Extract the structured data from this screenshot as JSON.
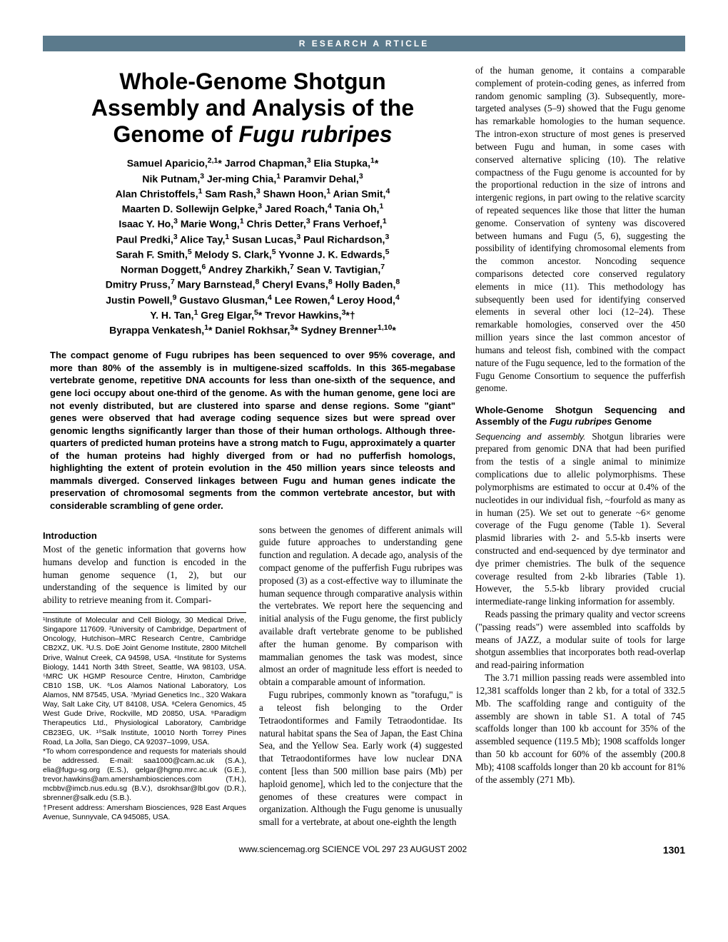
{
  "section_bar": "R ESEARCH  A RTICLE",
  "title_line1": "Whole-Genome Shotgun",
  "title_line2": "Assembly and Analysis of the",
  "title_line3": "Genome of Fugu rubripes",
  "authors_html": "Samuel Aparicio,<sup>2,1</sup>* Jarrod Chapman,<sup>3</sup> Elia Stupka,<sup>1</sup>*<br>Nik Putnam,<sup>3</sup> Jer-ming Chia,<sup>1</sup> Paramvir Dehal,<sup>3</sup><br>Alan Christoffels,<sup>1</sup> Sam Rash,<sup>3</sup> Shawn Hoon,<sup>1</sup> Arian Smit,<sup>4</sup><br>Maarten D. Sollewijn Gelpke,<sup>3</sup> Jared Roach,<sup>4</sup> Tania Oh,<sup>1</sup><br>Isaac Y. Ho,<sup>3</sup> Marie Wong,<sup>1</sup> Chris Detter,<sup>3</sup> Frans Verhoef,<sup>1</sup><br>Paul Predki,<sup>3</sup> Alice Tay,<sup>1</sup> Susan Lucas,<sup>3</sup> Paul Richardson,<sup>3</sup><br>Sarah F. Smith,<sup>5</sup> Melody S. Clark,<sup>5</sup> Yvonne J. K. Edwards,<sup>5</sup><br>Norman Doggett,<sup>6</sup> Andrey Zharkikh,<sup>7</sup> Sean V. Tavtigian,<sup>7</sup><br>Dmitry Pruss,<sup>7</sup> Mary Barnstead,<sup>8</sup> Cheryl Evans,<sup>8</sup> Holly Baden,<sup>8</sup><br>Justin Powell,<sup>9</sup> Gustavo Glusman,<sup>4</sup> Lee Rowen,<sup>4</sup> Leroy Hood,<sup>4</sup><br>Y. H. Tan,<sup>1</sup> Greg Elgar,<sup>5</sup>* Trevor Hawkins,<sup>3</sup>*†<br>Byrappa Venkatesh,<sup>1</sup>* Daniel Rokhsar,<sup>3</sup>* Sydney Brenner<sup>1,10</sup>*",
  "abstract": "The compact genome of Fugu rubripes has been sequenced to over 95% coverage, and more than 80% of the assembly is in multigene-sized scaffolds. In this 365-megabase vertebrate genome, repetitive DNA accounts for less than one-sixth of the sequence, and gene loci occupy about one-third of the genome. As with the human genome, gene loci are not evenly distributed, but are clustered into sparse and dense regions. Some \"giant\" genes were observed that had average coding sequence sizes but were spread over genomic lengths significantly larger than those of their human orthologs. Although three-quarters of predicted human proteins have a strong match to Fugu, approximately a quarter of the human proteins had highly diverged from or had no pufferfish homologs, highlighting the extent of protein evolution in the 450 million years since teleosts and mammals diverged. Conserved linkages between Fugu and human genes indicate the preservation of chromosomal segments from the common vertebrate ancestor, but with considerable scrambling of gene order.",
  "intro_heading": "Introduction",
  "intro_p1": "Most of the genetic information that governs how humans develop and function is encoded in the human genome sequence (1, 2), but our understanding of the sequence is limited by our ability to retrieve meaning from it. Compari-",
  "intro_p2": "sons between the genomes of different animals will guide future approaches to understanding gene function and regulation. A decade ago, analysis of the compact genome of the pufferfish Fugu rubripes was proposed (3) as a cost-effective way to illuminate the human sequence through comparative analysis within the vertebrates. We report here the sequencing and initial analysis of the Fugu genome, the first publicly available draft vertebrate genome to be published after the human genome. By comparison with mammalian genomes the task was modest, since almost an order of magnitude less effort is needed to obtain a comparable amount of information.",
  "intro_p3": "Fugu rubripes, commonly known as \"torafugu,\" is a teleost fish belonging to the Order Tetraodontiformes and Family Tetraodontidae. Its natural habitat spans the Sea of Japan, the East China Sea, and the Yellow Sea. Early work (4) suggested that Tetraodontiformes have low nuclear DNA content [less than 500 million base pairs (Mb) per haploid genome], which led to the conjecture that the genomes of these creatures were compact in organization. Although the Fugu genome is unusually small for a vertebrate, at about one-eighth the length",
  "affiliations": "¹Institute of Molecular and Cell Biology, 30 Medical Drive, Singapore 117609. ²University of Cambridge, Department of Oncology, Hutchison–MRC Research Centre, Cambridge CB2XZ, UK. ³U.S. DoE Joint Genome Institute, 2800 Mitchell Drive, Walnut Creek, CA 94598, USA. ⁴Institute for Systems Biology, 1441 North 34th Street, Seattle, WA 98103, USA. ⁵MRC UK HGMP Resource Centre, Hinxton, Cambridge CB10 1SB, UK. ⁶Los Alamos National Laboratory, Los Alamos, NM 87545, USA. ⁷Myriad Genetics Inc., 320 Wakara Way, Salt Lake City, UT 84108, USA. ⁸Celera Genomics, 45 West Gude Drive, Rockville, MD 20850, USA. ⁹Paradigm Therapeutics Ltd., Physiological Laboratory, Cambridge CB23EG, UK. ¹⁰Salk Institute, 10010 North Torrey Pines Road, La Jolla, San Diego, CA 92037–1099, USA.",
  "correspondence": "*To whom correspondence and requests for materials should be addressed. E-mail: saa1000@cam.ac.uk (S.A.), elia@fugu-sg.org (E.S.), gelgar@hgmp.mrc.ac.uk (G.E.), trevor.hawkins@am.amershambiosciences.com (T.H.), mcbbv@imcb.nus.edu.sg (B.V.), dsrokhsar@lbl.gov (D.R.), sbrenner@salk.edu (S.B.).",
  "present_address": "†Present address: Amersham Biosciences, 928 East Arques Avenue, Sunnyvale, CA 945085, USA.",
  "right_p1": "of the human genome, it contains a comparable complement of protein-coding genes, as inferred from random genomic sampling (3). Subsequently, more-targeted analyses (5–9) showed that the Fugu genome has remarkable homologies to the human sequence. The intron-exon structure of most genes is preserved between Fugu and human, in some cases with conserved alternative splicing (10). The relative compactness of the Fugu genome is accounted for by the proportional reduction in the size of introns and intergenic regions, in part owing to the relative scarcity of repeated sequences like those that litter the human genome. Conservation of synteny was discovered between humans and Fugu (5, 6), suggesting the possibility of identifying chromosomal elements from the common ancestor. Noncoding sequence comparisons detected core conserved regulatory elements in mice (11). This methodology has subsequently been used for identifying conserved elements in several other loci (12–24). These remarkable homologies, conserved over the 450 million years since the last common ancestor of humans and teleost fish, combined with the compact nature of the Fugu sequence, led to the formation of the Fugu Genome Consortium to sequence the pufferfish genome.",
  "right_h2": "Whole-Genome Shotgun Sequencing and Assembly of the Fugu rubripes Genome",
  "right_runhead": "Sequencing and assembly.",
  "right_p2a": "Shotgun libraries were prepared from genomic DNA that had been purified from the testis of a single animal to minimize complications due to allelic polymorphisms. These polymorphisms are estimated to occur at 0.4% of the nucleotides in our individual fish, ~fourfold as many as in human (25). We set out to generate ~6× genome coverage of the Fugu genome (Table 1). Several plasmid libraries with 2- and 5.5-kb inserts were constructed and end-sequenced by dye terminator and dye primer chemistries. The bulk of the sequence coverage resulted from 2-kb libraries (Table 1). However, the 5.5-kb library provided crucial intermediate-range linking information for assembly.",
  "right_p3": "Reads passing the primary quality and vector screens (\"passing reads\") were assembled into scaffolds by means of JAZZ, a modular suite of tools for large shotgun assemblies that incorporates both read-overlap and read-pairing information",
  "right_p4": "The 3.71 million passing reads were assembled into 12,381 scaffolds longer than 2 kb, for a total of 332.5 Mb. The scaffolding range and contiguity of the assembly are shown in table S1. A total of 745 scaffolds longer than 100 kb account for 35% of the assembled sequence (119.5 Mb); 1908 scaffolds longer than 50 kb account for 60% of the assembly (200.8 Mb); 4108 scaffolds longer than 20 kb account for 81% of the assembly (271 Mb).",
  "footer_text": "www.sciencemag.org   SCIENCE   VOL 297   23 AUGUST 2002",
  "page_number": "1301"
}
